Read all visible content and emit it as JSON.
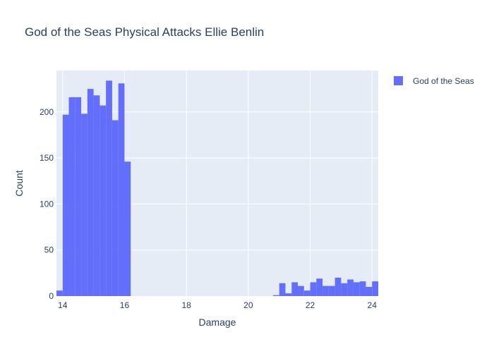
{
  "chart_data": {
    "type": "bar",
    "title": "God of the Seas Physical Attacks Ellie Benlin",
    "xlabel": "Damage",
    "ylabel": "Count",
    "xlim": [
      13.8,
      24.2
    ],
    "ylim": [
      0,
      245
    ],
    "bin_width": 0.2,
    "x_ticks": [
      14,
      16,
      18,
      20,
      22,
      24
    ],
    "y_ticks": [
      0,
      50,
      100,
      150,
      200
    ],
    "legend_position": "top-right",
    "grid": true,
    "series": [
      {
        "name": "God of the Seas",
        "color": "#636efa",
        "bins": [
          {
            "x0": 13.8,
            "count": 6
          },
          {
            "x0": 14.0,
            "count": 197
          },
          {
            "x0": 14.2,
            "count": 216
          },
          {
            "x0": 14.4,
            "count": 216
          },
          {
            "x0": 14.6,
            "count": 198
          },
          {
            "x0": 14.8,
            "count": 225
          },
          {
            "x0": 15.0,
            "count": 218
          },
          {
            "x0": 15.2,
            "count": 207
          },
          {
            "x0": 15.4,
            "count": 234
          },
          {
            "x0": 15.6,
            "count": 191
          },
          {
            "x0": 15.8,
            "count": 231
          },
          {
            "x0": 16.0,
            "count": 146
          },
          {
            "x0": 20.8,
            "count": 1
          },
          {
            "x0": 21.0,
            "count": 14
          },
          {
            "x0": 21.2,
            "count": 3
          },
          {
            "x0": 21.4,
            "count": 15
          },
          {
            "x0": 21.6,
            "count": 11
          },
          {
            "x0": 21.8,
            "count": 6
          },
          {
            "x0": 22.0,
            "count": 15
          },
          {
            "x0": 22.2,
            "count": 19
          },
          {
            "x0": 22.4,
            "count": 11
          },
          {
            "x0": 22.6,
            "count": 11
          },
          {
            "x0": 22.8,
            "count": 20
          },
          {
            "x0": 23.0,
            "count": 14
          },
          {
            "x0": 23.2,
            "count": 18
          },
          {
            "x0": 23.4,
            "count": 15
          },
          {
            "x0": 23.6,
            "count": 16
          },
          {
            "x0": 23.8,
            "count": 10
          },
          {
            "x0": 24.0,
            "count": 16
          }
        ]
      }
    ]
  }
}
